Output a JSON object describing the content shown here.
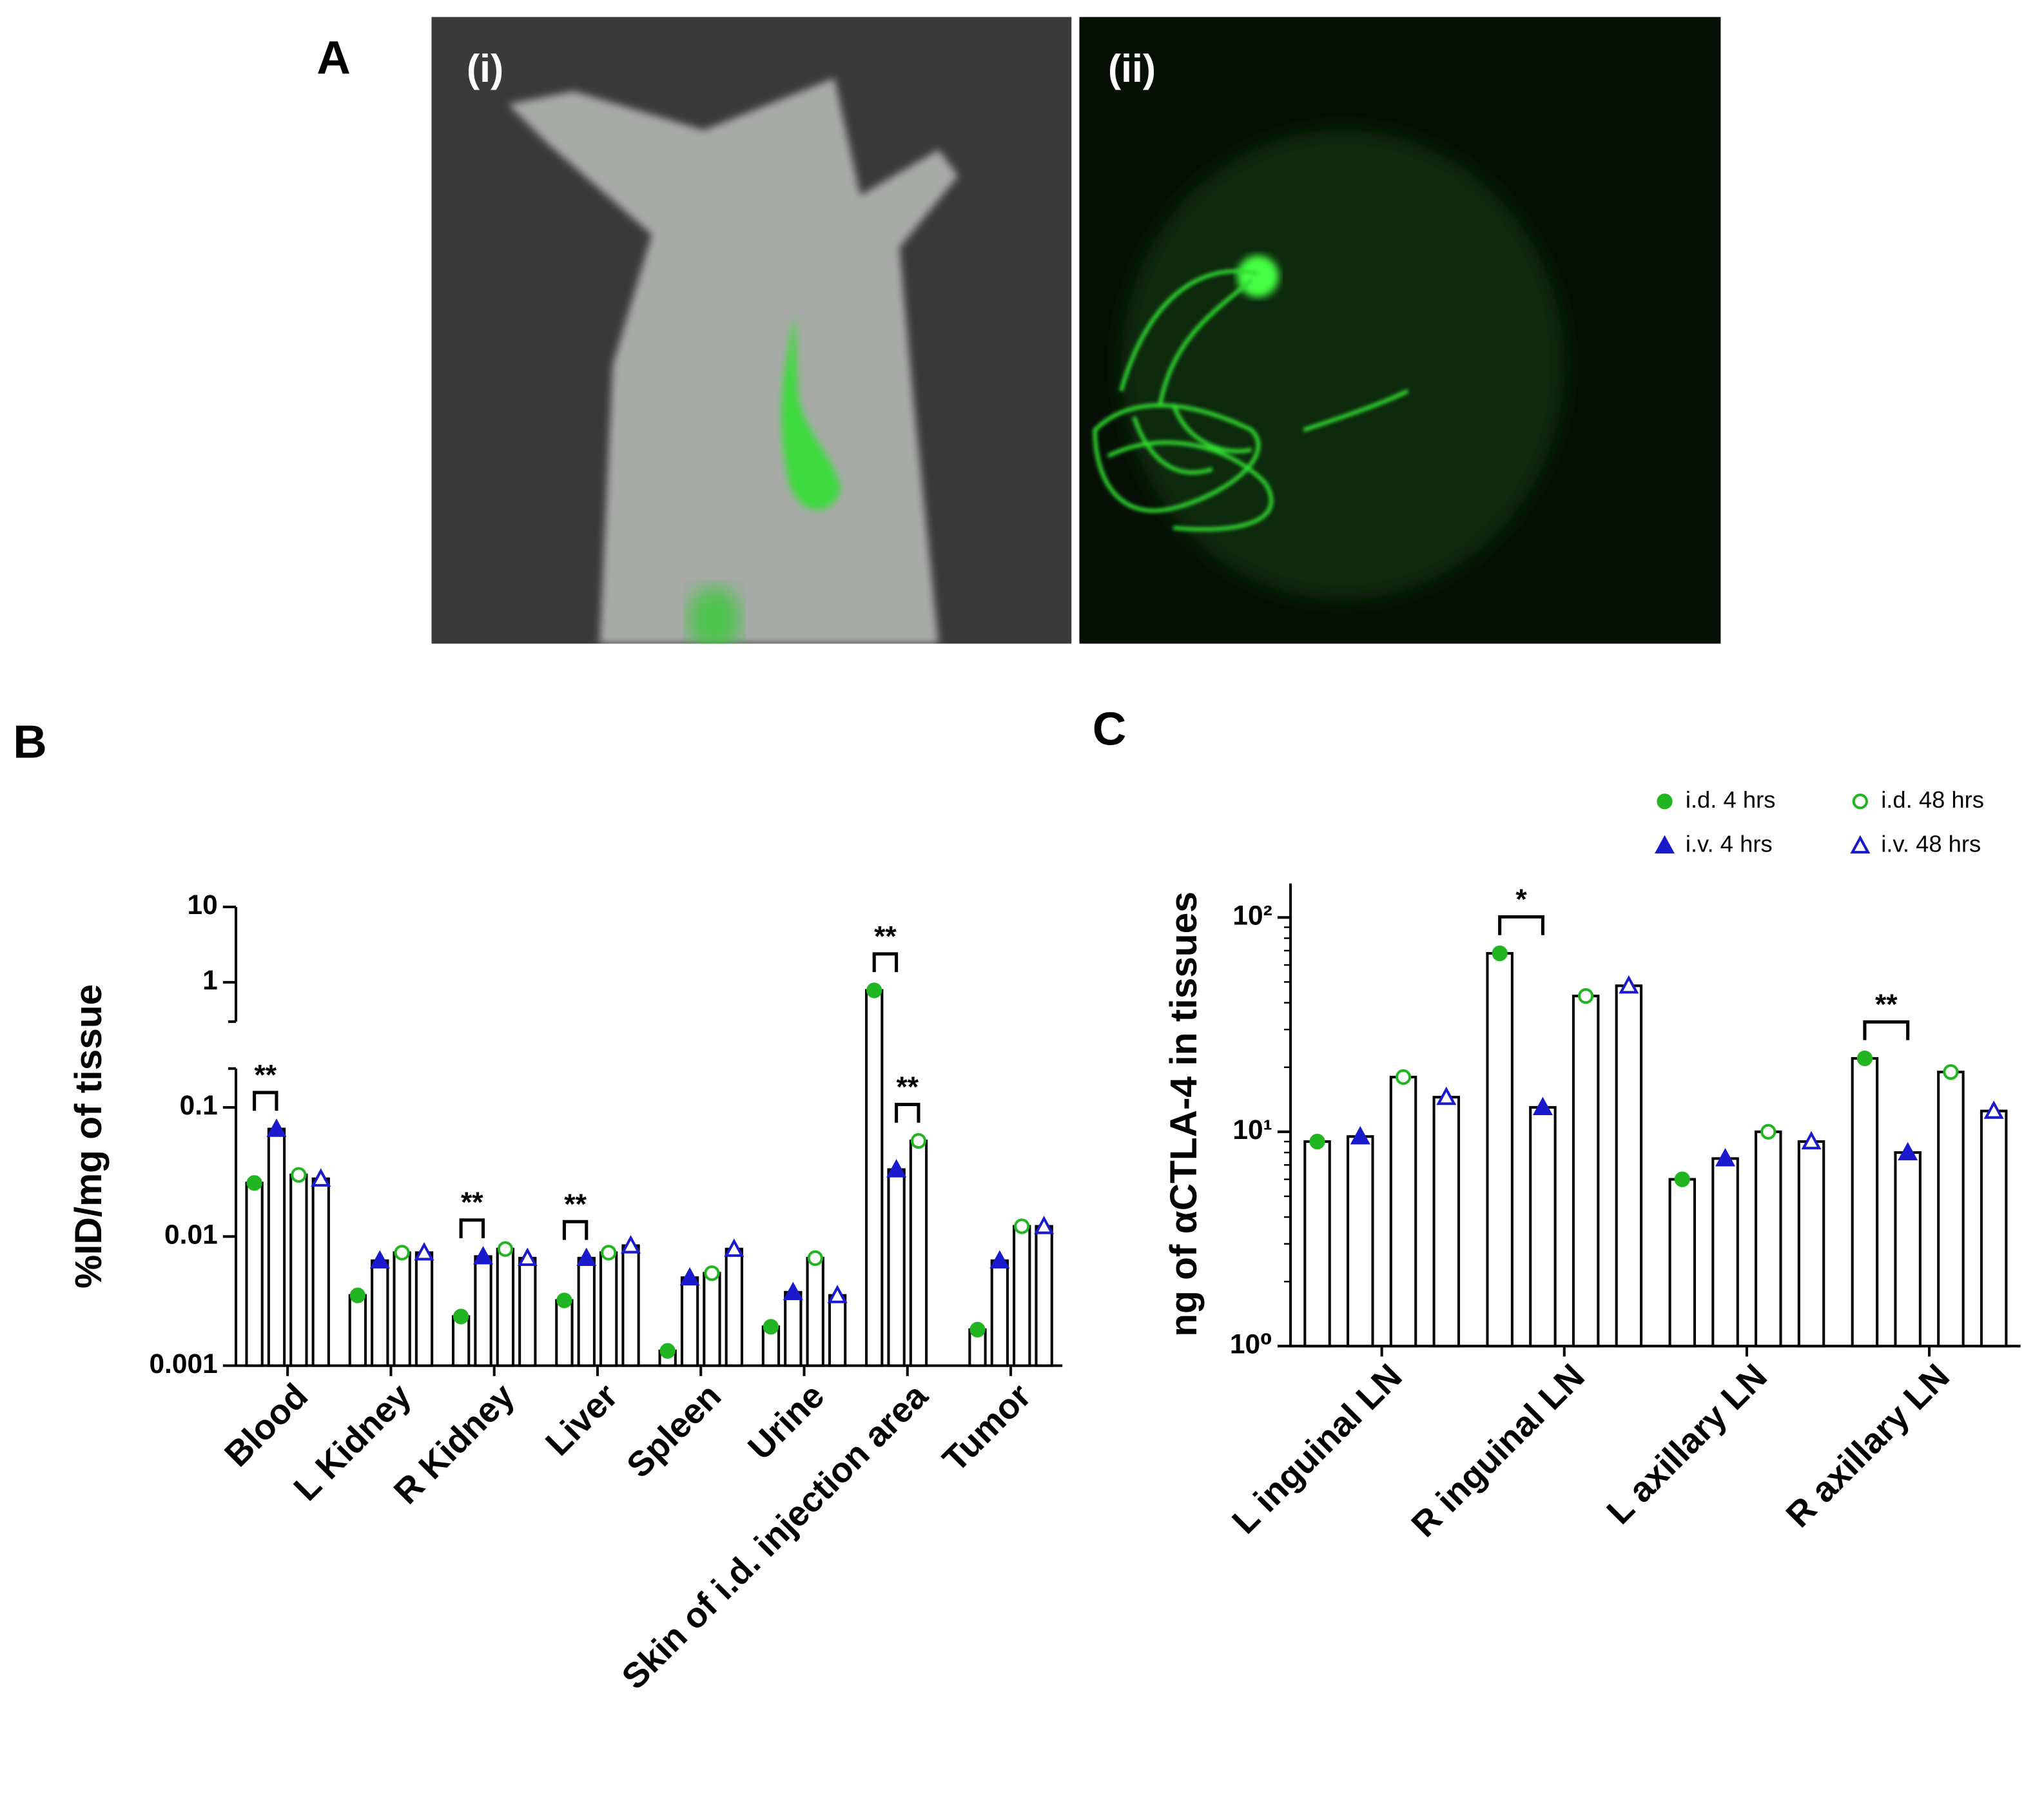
{
  "panel_labels": [
    "A",
    "B",
    "C"
  ],
  "image_labels": [
    "(i)",
    "(ii)"
  ],
  "chart_data": [
    {
      "type": "bar",
      "ylabel": "%ID/mg of tissue",
      "log_scale": true,
      "categories": [
        "Blood",
        "L Kidney",
        "R Kidney",
        "Liver",
        "Spleen",
        "Urine",
        "Skin of i.d. injection area",
        "Tumor"
      ],
      "series": [
        {
          "color": "#22b522",
          "marker": "circle",
          "filled": true,
          "values": [
            0.026,
            0.0035,
            0.0024,
            0.0032,
            0.0013,
            0.002,
            0.78,
            0.0019
          ]
        },
        {
          "color": "#1a1acc",
          "marker": "triangle",
          "filled": true,
          "values": [
            0.068,
            0.0065,
            0.007,
            0.0068,
            0.0048,
            0.0037,
            0.033,
            0.0065
          ]
        },
        {
          "color": "#22b522",
          "marker": "circle",
          "filled": false,
          "values": [
            0.03,
            0.0075,
            0.008,
            0.0075,
            0.0052,
            0.0068,
            0.055,
            0.012
          ]
        },
        {
          "color": "#1a1acc",
          "marker": "triangle",
          "filled": false,
          "values": [
            0.028,
            0.0075,
            0.0068,
            0.0085,
            0.008,
            0.0035,
            null,
            0.012
          ]
        }
      ],
      "ylim": [
        0.001,
        10
      ],
      "y_break": [
        0.2,
        0.3
      ],
      "yticks": [
        0.001,
        0.01,
        0.1,
        1,
        10
      ],
      "annotations": [
        {
          "text": "**",
          "category": 0,
          "series": [
            0,
            1
          ]
        },
        {
          "text": "**",
          "category": 2,
          "series": [
            0,
            1
          ]
        },
        {
          "text": "**",
          "category": 3,
          "series": [
            0,
            1
          ]
        },
        {
          "text": "**",
          "category": 6,
          "series": [
            0,
            1
          ]
        },
        {
          "text": "**",
          "category": 6,
          "series": [
            1,
            2
          ]
        }
      ]
    },
    {
      "type": "bar",
      "ylabel": "ng of αCTLA-4 in tissues",
      "log_scale": true,
      "categories": [
        "L inguinal LN",
        "R inguinal LN",
        "L axillary LN",
        "R axillary LN"
      ],
      "series": [
        {
          "name": "i.d. 4 hrs",
          "color": "#22b522",
          "marker": "circle",
          "filled": true,
          "values": [
            9,
            68,
            6,
            22
          ]
        },
        {
          "name": "i.v. 4 hrs",
          "color": "#1a1acc",
          "marker": "triangle",
          "filled": true,
          "values": [
            9.5,
            13,
            7.5,
            8
          ]
        },
        {
          "name": "i.d. 48 hrs",
          "color": "#22b522",
          "marker": "circle",
          "filled": false,
          "values": [
            18,
            43,
            10,
            19
          ]
        },
        {
          "name": "i.v. 48 hrs",
          "color": "#1a1acc",
          "marker": "triangle",
          "filled": false,
          "values": [
            14.5,
            48,
            9,
            12.5
          ]
        }
      ],
      "ylim": [
        1,
        144
      ],
      "yticks": [
        {
          "value": 1,
          "label": "10⁰"
        },
        {
          "value": 10,
          "label": "10¹"
        },
        {
          "value": 100,
          "label": "10²"
        }
      ],
      "legend": "top-right",
      "annotations": [
        {
          "text": "*",
          "category": 1,
          "series": [
            0,
            1
          ]
        },
        {
          "text": "**",
          "category": 3,
          "series": [
            0,
            1
          ]
        }
      ]
    }
  ]
}
